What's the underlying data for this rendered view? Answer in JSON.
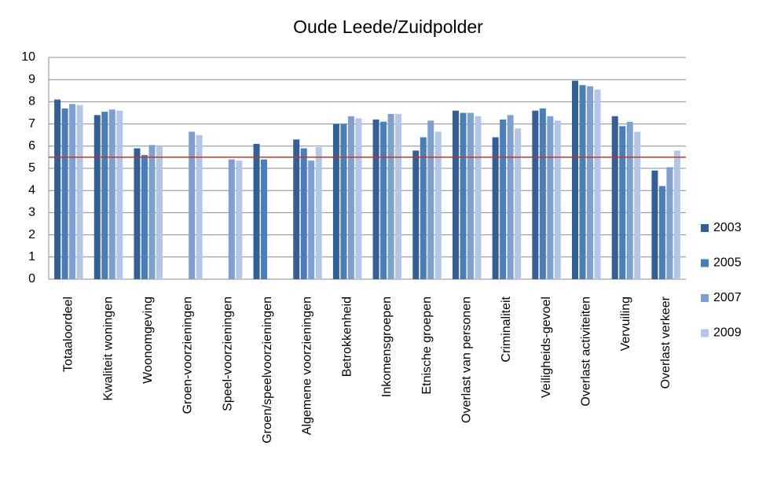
{
  "chart_data": {
    "type": "bar",
    "title": "Oude Leede/Zuidpolder",
    "categories": [
      "Totaaloordeel",
      "Kwaliteit woningen",
      "Woonomgeving",
      "Groen-voorzieningen",
      "Speel-voorzieningen",
      "Groen/speelvoorzieningen",
      "Algemene voorzieningen",
      "Betrokkenheid",
      "Inkomensgroepen",
      "Etnische groepen",
      "Overlast van personen",
      "Criminaliteit",
      "Veiligheids-gevoel",
      "Overlast activiteiten",
      "Vervuiling",
      "Overlast verkeer"
    ],
    "series": [
      {
        "name": "2003",
        "color": "#335e96",
        "values": [
          8.1,
          7.4,
          5.9,
          null,
          null,
          6.1,
          6.3,
          7.0,
          7.2,
          5.8,
          7.6,
          6.4,
          7.6,
          8.95,
          7.35,
          4.9
        ]
      },
      {
        "name": "2005",
        "color": "#4a7ebb",
        "values": [
          7.7,
          7.55,
          5.6,
          null,
          null,
          5.4,
          5.9,
          7.0,
          7.1,
          6.4,
          7.5,
          7.2,
          7.7,
          8.75,
          6.9,
          4.2
        ]
      },
      {
        "name": "2007",
        "color": "#7f9fcf",
        "values": [
          7.9,
          7.65,
          6.05,
          6.65,
          5.4,
          null,
          5.35,
          7.35,
          7.45,
          7.15,
          7.5,
          7.4,
          7.35,
          8.7,
          7.1,
          5.05
        ]
      },
      {
        "name": "2009",
        "color": "#b4c6e7",
        "values": [
          7.85,
          7.6,
          6.0,
          6.5,
          5.35,
          null,
          5.95,
          7.25,
          7.45,
          6.65,
          7.35,
          6.8,
          7.15,
          8.55,
          6.65,
          5.8
        ]
      }
    ],
    "reference_line": 5.5,
    "reference_color": "#c0392b",
    "ylim": [
      0,
      10
    ],
    "yticks": [
      0,
      1,
      2,
      3,
      4,
      5,
      6,
      7,
      8,
      9,
      10
    ],
    "grid": true,
    "legend": "right"
  }
}
